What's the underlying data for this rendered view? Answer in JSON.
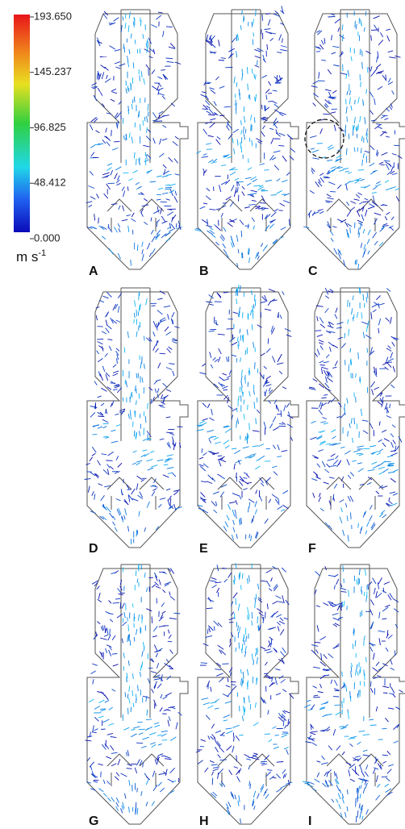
{
  "colorbar": {
    "ticks": [
      "193.650",
      "145.237",
      "96.825",
      "48.412",
      "0.000"
    ],
    "unit": "m s",
    "unit_exponent": "-1"
  },
  "panels": [
    "A",
    "B",
    "C",
    "D",
    "E",
    "F",
    "G",
    "H",
    "I"
  ]
}
